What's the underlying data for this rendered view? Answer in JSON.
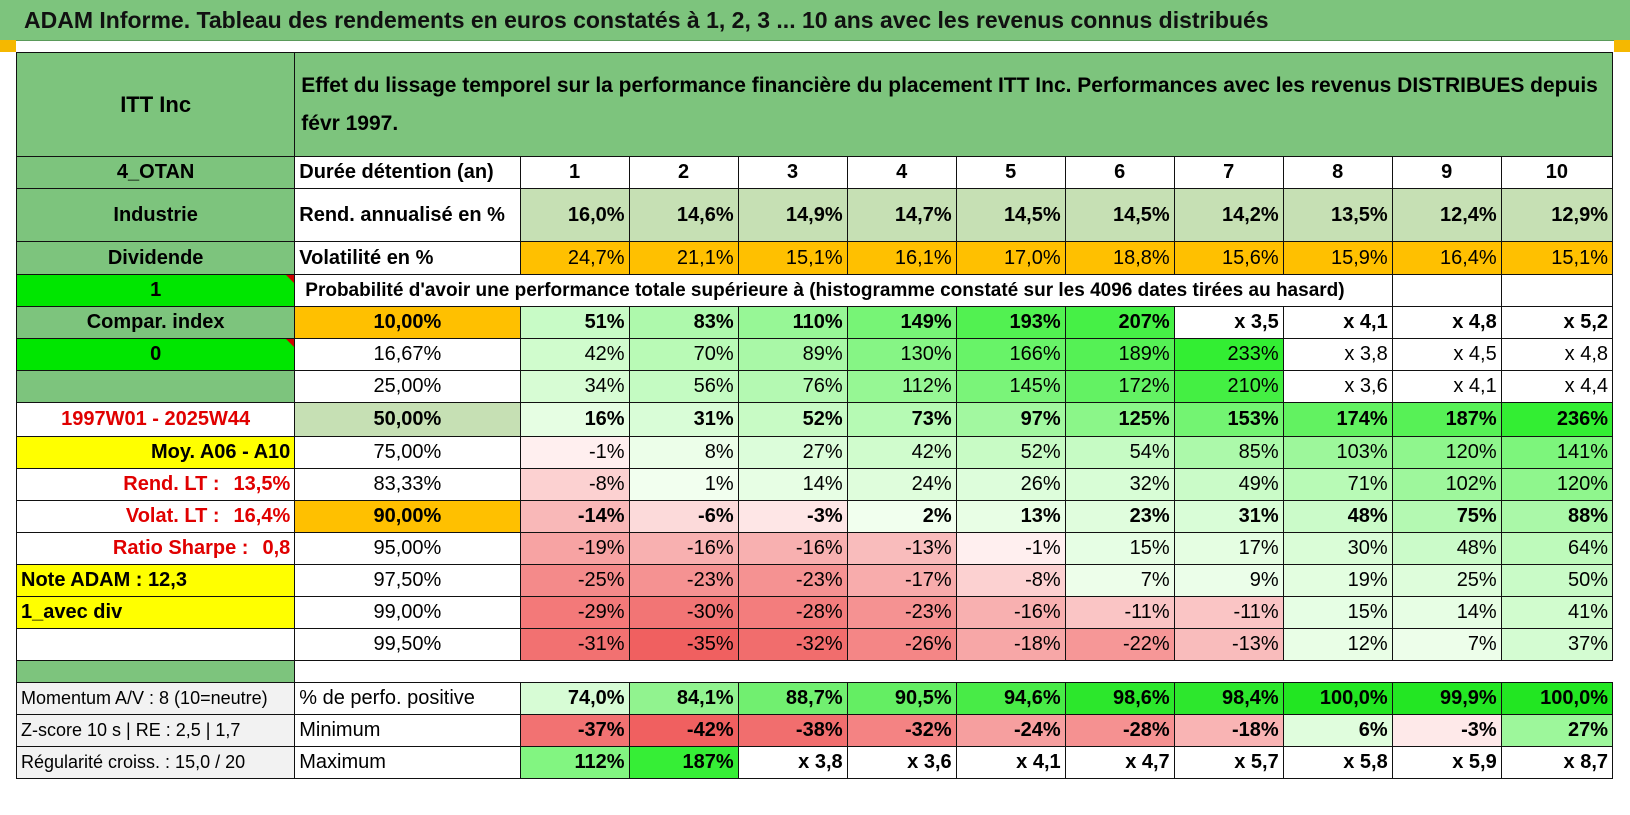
{
  "title": "ADAM Informe. Tableau des rendements en euros constatés à 1, 2, 3 ... 10 ans avec les revenus connus distribués",
  "header": {
    "asset": "ITT Inc",
    "description": "Effet du lissage temporel sur la performance financière du placement ITT Inc. Performances avec les revenus DISTRIBUES depuis févr 1997."
  },
  "left": {
    "code": "4_OTAN",
    "sector": "Industrie",
    "type": "Dividende",
    "flag1": "1",
    "compar": "Compar. index",
    "flag0": "0",
    "period": "1997W01 - 2025W44",
    "avg": "Moy. A06 - A10",
    "rend_label": "Rend. LT :",
    "rend_value": "13,5%",
    "volat_label": "Volat. LT :",
    "volat_value": "16,4%",
    "sharpe_label": "Ratio Sharpe :",
    "sharpe_value": "0,8",
    "note": "Note ADAM : 12,3",
    "div": "1_avec div",
    "momentum": "Momentum A/V : 8 (10=neutre)",
    "zscore": "Z-score 10 s | RE : 2,5 | 1,7",
    "regularite": "Régularité croiss. : 15,0 / 20"
  },
  "labels": {
    "duree": "Durée détention (an)",
    "rend": "Rend. annualisé en %",
    "volat": "Volatilité en %",
    "proba": "Probabilité d'avoir une performance totale supérieure à (histogramme constaté sur les 4096 dates tirées au hasard)",
    "pos": "% de perfo. positive",
    "min": "Minimum",
    "max": "Maximum"
  },
  "years": [
    "1",
    "2",
    "3",
    "4",
    "5",
    "6",
    "7",
    "8",
    "9",
    "10"
  ],
  "rend": [
    "16,0%",
    "14,6%",
    "14,9%",
    "14,7%",
    "14,5%",
    "14,5%",
    "14,2%",
    "13,5%",
    "12,4%",
    "12,9%"
  ],
  "volat": [
    "24,7%",
    "21,1%",
    "15,1%",
    "16,1%",
    "17,0%",
    "18,8%",
    "15,6%",
    "15,9%",
    "16,4%",
    "15,1%"
  ],
  "prob_rows": [
    {
      "p": "10,00%",
      "v": [
        "51%",
        "83%",
        "110%",
        "149%",
        "193%",
        "207%",
        "x 3,5",
        "x 4,1",
        "x 4,8",
        "x 5,2"
      ]
    },
    {
      "p": "16,67%",
      "v": [
        "42%",
        "70%",
        "89%",
        "130%",
        "166%",
        "189%",
        "233%",
        "x 3,8",
        "x 4,5",
        "x 4,8"
      ]
    },
    {
      "p": "25,00%",
      "v": [
        "34%",
        "56%",
        "76%",
        "112%",
        "145%",
        "172%",
        "210%",
        "x 3,6",
        "x 4,1",
        "x 4,4"
      ]
    },
    {
      "p": "50,00%",
      "v": [
        "16%",
        "31%",
        "52%",
        "73%",
        "97%",
        "125%",
        "153%",
        "174%",
        "187%",
        "236%"
      ]
    },
    {
      "p": "75,00%",
      "v": [
        "-1%",
        "8%",
        "27%",
        "42%",
        "52%",
        "54%",
        "85%",
        "103%",
        "120%",
        "141%"
      ]
    },
    {
      "p": "83,33%",
      "v": [
        "-8%",
        "1%",
        "14%",
        "24%",
        "26%",
        "32%",
        "49%",
        "71%",
        "102%",
        "120%"
      ]
    },
    {
      "p": "90,00%",
      "v": [
        "-14%",
        "-6%",
        "-3%",
        "2%",
        "13%",
        "23%",
        "31%",
        "48%",
        "75%",
        "88%"
      ]
    },
    {
      "p": "95,00%",
      "v": [
        "-19%",
        "-16%",
        "-16%",
        "-13%",
        "-1%",
        "15%",
        "17%",
        "30%",
        "48%",
        "64%"
      ]
    },
    {
      "p": "97,50%",
      "v": [
        "-25%",
        "-23%",
        "-23%",
        "-17%",
        "-8%",
        "7%",
        "9%",
        "19%",
        "25%",
        "50%"
      ]
    },
    {
      "p": "99,00%",
      "v": [
        "-29%",
        "-30%",
        "-28%",
        "-23%",
        "-16%",
        "-11%",
        "-11%",
        "15%",
        "14%",
        "41%"
      ]
    },
    {
      "p": "99,50%",
      "v": [
        "-31%",
        "-35%",
        "-32%",
        "-26%",
        "-18%",
        "-22%",
        "-13%",
        "12%",
        "7%",
        "37%"
      ]
    }
  ],
  "pos": [
    "74,0%",
    "84,1%",
    "88,7%",
    "90,5%",
    "94,6%",
    "98,6%",
    "98,4%",
    "100,0%",
    "99,9%",
    "100,0%"
  ],
  "min": [
    "-37%",
    "-42%",
    "-38%",
    "-32%",
    "-24%",
    "-28%",
    "-18%",
    "6%",
    "-3%",
    "27%"
  ],
  "max": [
    "112%",
    "187%",
    "x 3,8",
    "x 3,6",
    "x 4,1",
    "x 4,7",
    "x 5,7",
    "x 5,8",
    "x 5,9",
    "x 8,7"
  ],
  "colors": {
    "header_green": "#7dc47d",
    "light_green": "#c6e0b4",
    "orange": "#ffc000",
    "yellow": "#ffff00",
    "bright_green": "#00e600",
    "red_text": "#e00000"
  }
}
